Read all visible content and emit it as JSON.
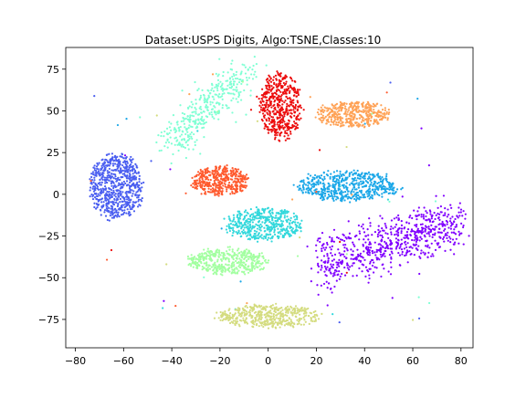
{
  "chart_data": {
    "type": "scatter",
    "title": "Dataset:USPS Digits, Algo:TSNE,Classes:10",
    "xlabel": "",
    "ylabel": "",
    "xlim": [
      -84,
      85
    ],
    "ylim": [
      -92,
      88
    ],
    "xticks": [
      -80,
      -60,
      -40,
      -20,
      0,
      20,
      40,
      60,
      80
    ],
    "xtick_labels": [
      "−80",
      "−60",
      "−40",
      "−20",
      "0",
      "20",
      "40",
      "60",
      "80"
    ],
    "yticks": [
      -75,
      -50,
      -25,
      0,
      25,
      50,
      75
    ],
    "ytick_labels": [
      "−75",
      "−50",
      "−25",
      "0",
      "25",
      "50",
      "75"
    ],
    "grid": false,
    "legend": "none",
    "clusters": [
      {
        "class_index": 0,
        "color": "#8000ff",
        "center": [
          50,
          -30
        ],
        "extent": [
          30,
          15
        ],
        "count": 700,
        "shape": "diagonal"
      },
      {
        "class_index": 1,
        "color": "#4a5ef0",
        "center": [
          -63,
          5
        ],
        "extent": [
          11,
          20
        ],
        "count": 650
      },
      {
        "class_index": 2,
        "color": "#1ba7e8",
        "center": [
          33,
          5
        ],
        "extent": [
          22,
          9
        ],
        "count": 550
      },
      {
        "class_index": 3,
        "color": "#33d8dc",
        "center": [
          -2,
          -18
        ],
        "extent": [
          16,
          10
        ],
        "count": 480
      },
      {
        "class_index": 4,
        "color": "#80ffd4",
        "center": [
          -25,
          52
        ],
        "extent": [
          17,
          17
        ],
        "count": 380,
        "shape": "diagonal_steep"
      },
      {
        "class_index": 5,
        "color": "#a2ffa0",
        "center": [
          -17,
          -40
        ],
        "extent": [
          17,
          8
        ],
        "count": 420
      },
      {
        "class_index": 6,
        "color": "#d4dc7f",
        "center": [
          0,
          -73
        ],
        "extent": [
          22,
          7
        ],
        "count": 450
      },
      {
        "class_index": 7,
        "color": "#ffa256",
        "center": [
          35,
          48
        ],
        "extent": [
          15,
          8
        ],
        "count": 420
      },
      {
        "class_index": 8,
        "color": "#ff5a2e",
        "center": [
          -20,
          8
        ],
        "extent": [
          12,
          9
        ],
        "count": 420
      },
      {
        "class_index": 9,
        "color": "#ec0d0d",
        "center": [
          5,
          53
        ],
        "extent": [
          9,
          20
        ],
        "count": 500
      }
    ]
  }
}
